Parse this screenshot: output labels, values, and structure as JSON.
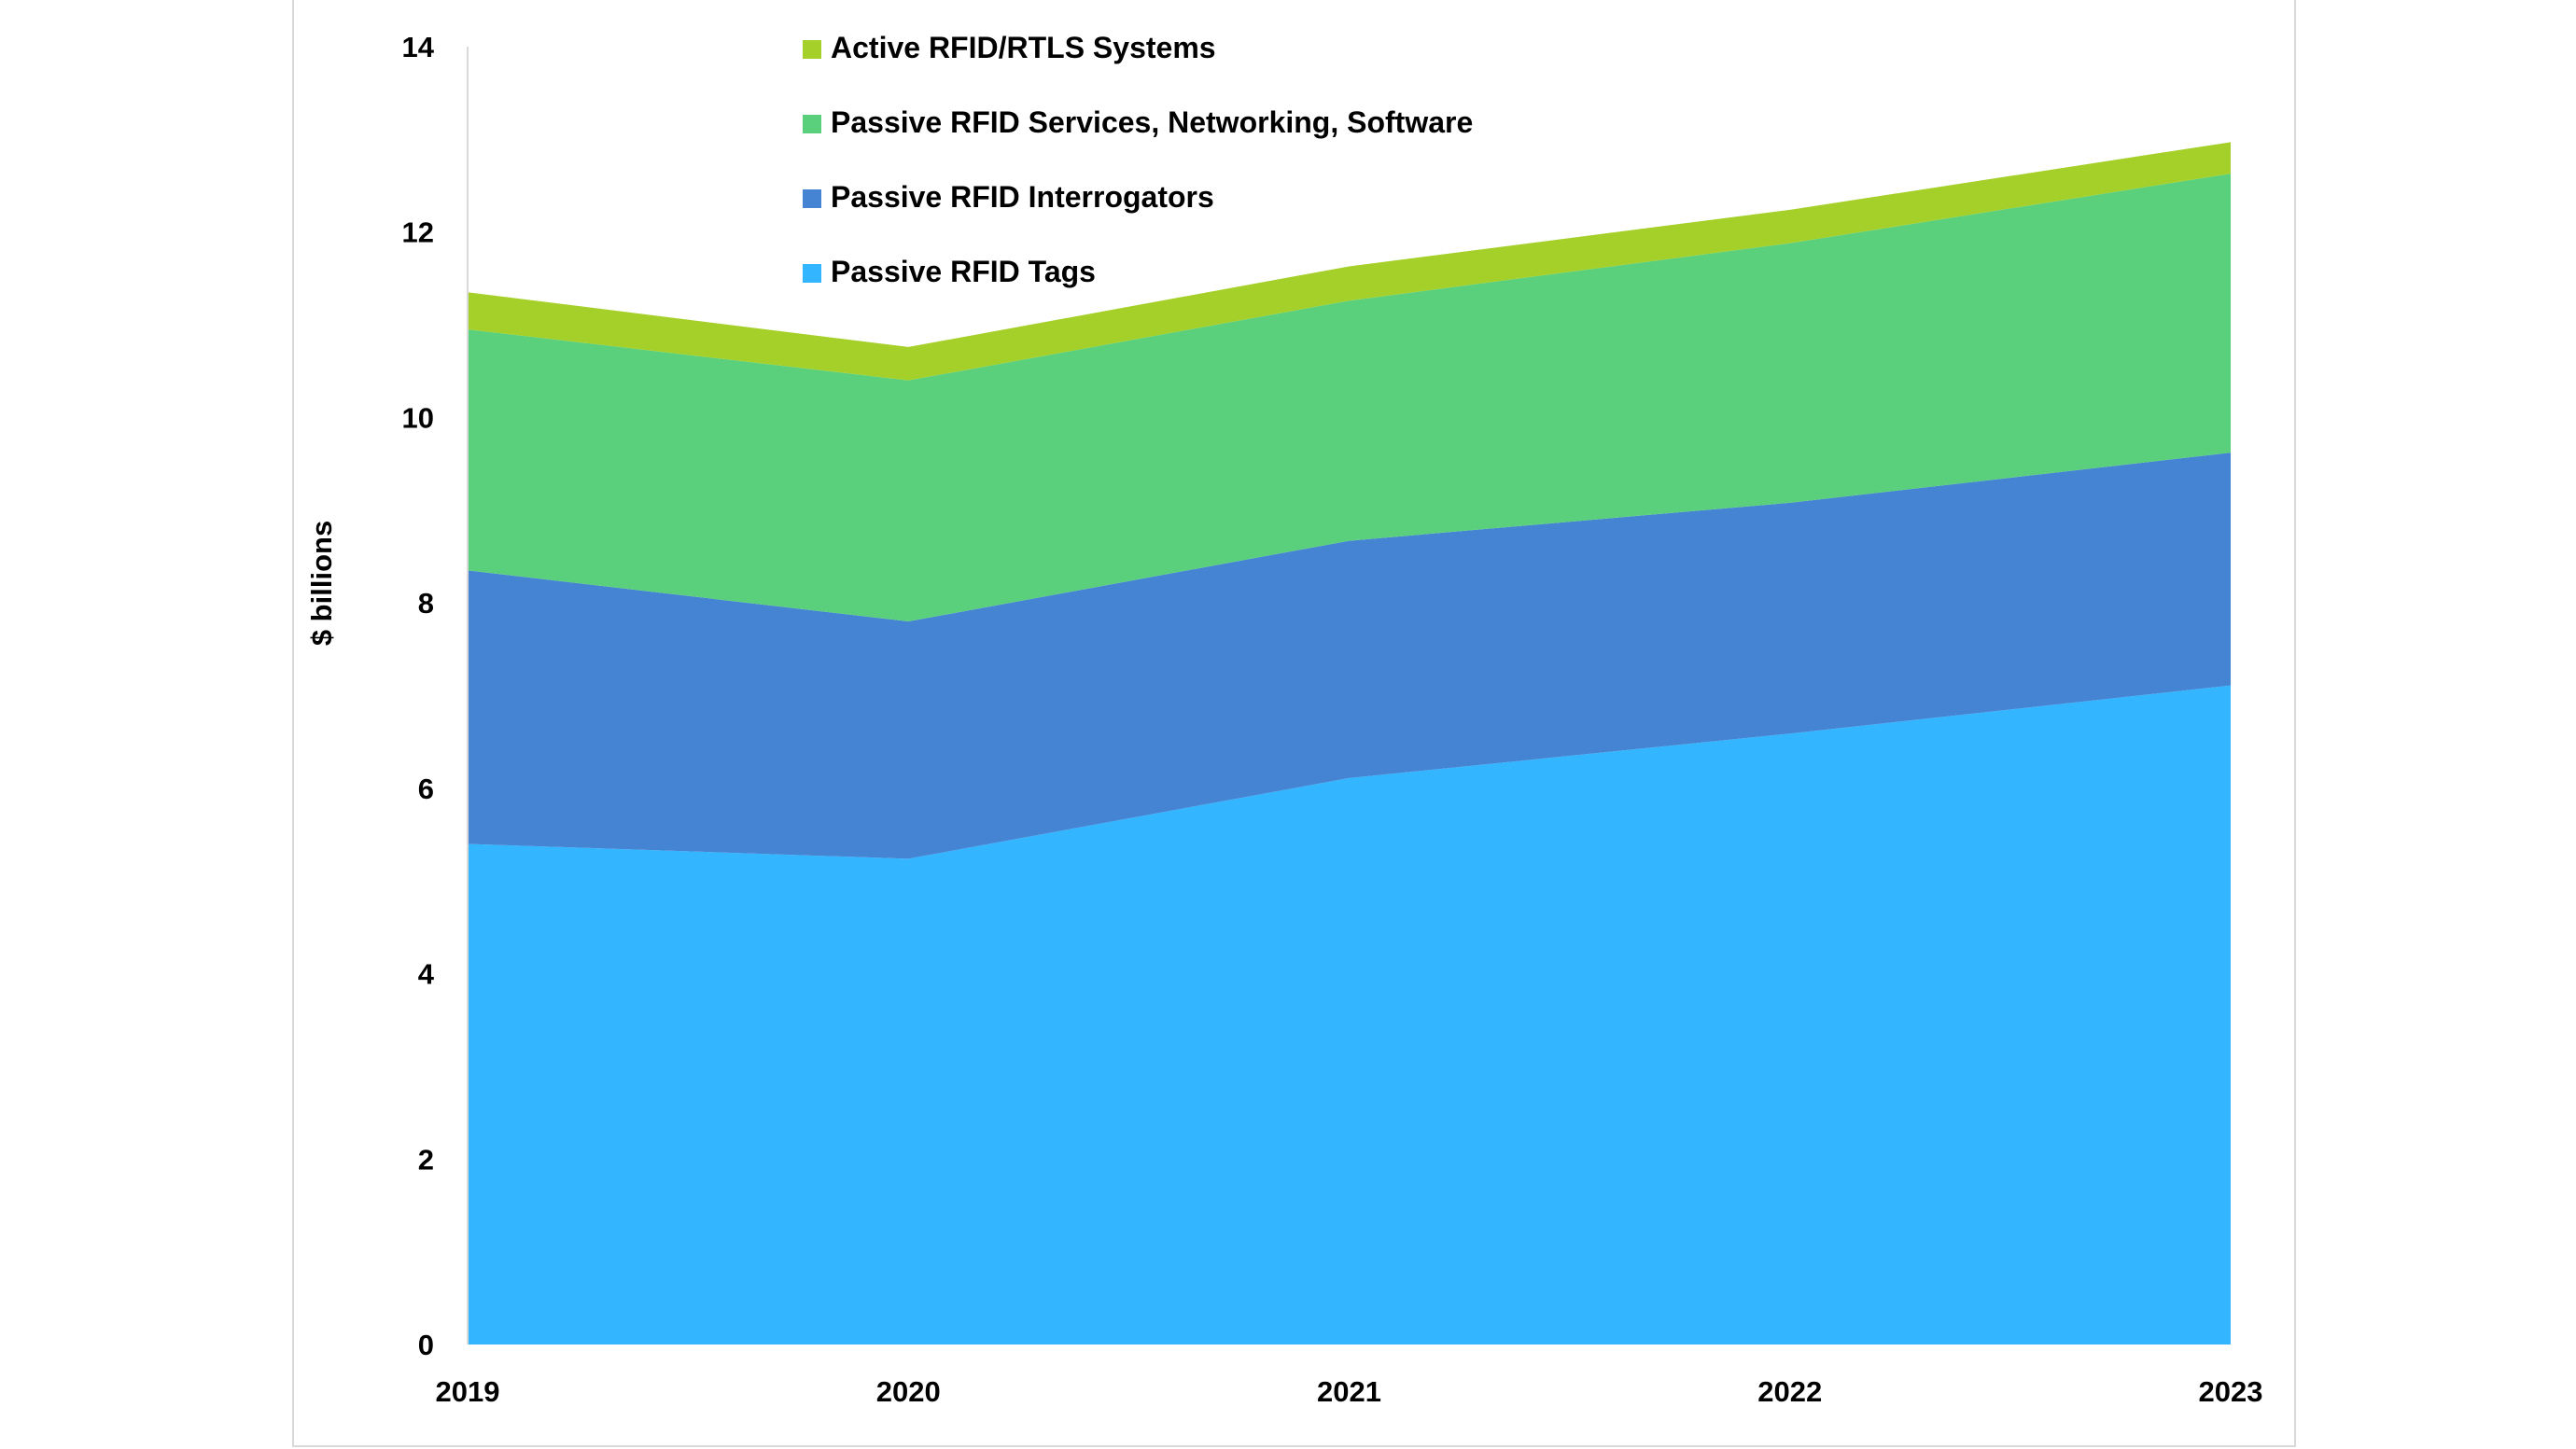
{
  "chart_data": {
    "type": "area",
    "stacked": true,
    "title": "",
    "xlabel": "",
    "ylabel": "$ billions",
    "categories": [
      "2019",
      "2020",
      "2021",
      "2022",
      "2023"
    ],
    "ylim": [
      0,
      14
    ],
    "yticks": [
      0,
      2,
      4,
      6,
      8,
      10,
      12,
      14
    ],
    "grid": false,
    "legend_position": "top-center",
    "series": [
      {
        "name": "Passive RFID Tags",
        "color": "#33b5ff",
        "values": [
          5.4,
          5.24,
          6.11,
          6.59,
          7.11
        ]
      },
      {
        "name": "Passive RFID Interrogators",
        "color": "#4584d3",
        "values": [
          2.95,
          2.56,
          2.56,
          2.49,
          2.51
        ]
      },
      {
        "name": "Passive RFID Services, Networking, Software",
        "color": "#5bd07c",
        "values": [
          2.6,
          2.6,
          2.59,
          2.8,
          3.01
        ]
      },
      {
        "name": "Active RFID/RTLS Systems",
        "color": "#a5d029",
        "values": [
          0.4,
          0.36,
          0.37,
          0.36,
          0.34
        ]
      }
    ]
  }
}
